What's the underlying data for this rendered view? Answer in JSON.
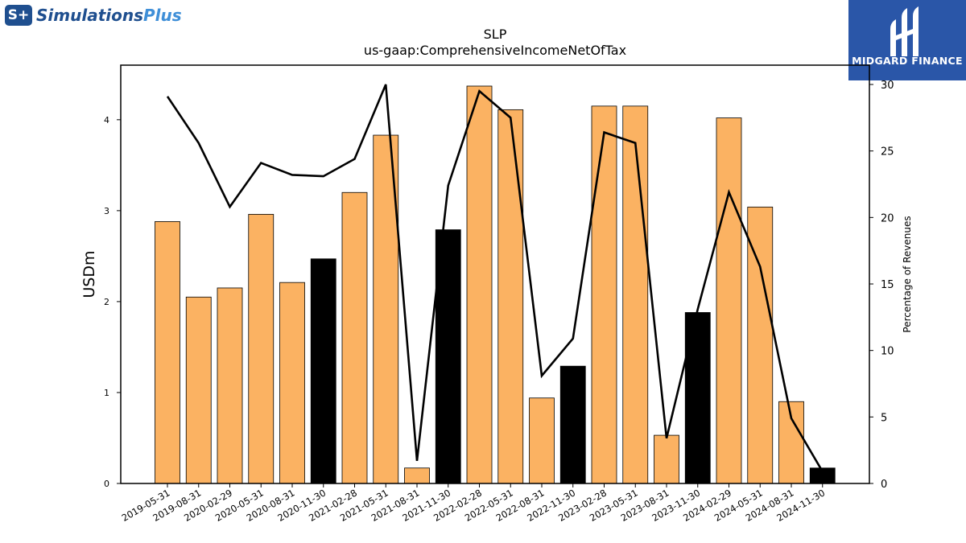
{
  "brand": {
    "left_logo_mark": "S+",
    "left_logo_text_main": "Simulations",
    "left_logo_text_accent": "Plus",
    "right_logo_text": "MIDGARD FINANCE"
  },
  "chart_data": {
    "type": "bar",
    "title": "SLP",
    "subtitle": "us-gaap:ComprehensiveIncomeNetOfTax",
    "ylabel": "USDm",
    "y2label": "Percentage of Revenues",
    "ylim": [
      0,
      4.6
    ],
    "y2lim": [
      0,
      30
    ],
    "yticks": [
      0,
      1,
      2,
      3,
      4
    ],
    "y2ticks": [
      0,
      5,
      10,
      15,
      20,
      25,
      30
    ],
    "categories": [
      "2019-05-31",
      "2019-08-31",
      "2020-02-29",
      "2020-05-31",
      "2020-08-31",
      "2020-11-30",
      "2021-02-28",
      "2021-05-31",
      "2021-08-31",
      "2021-11-30",
      "2022-02-28",
      "2022-05-31",
      "2022-08-31",
      "2022-11-30",
      "2023-02-28",
      "2023-05-31",
      "2023-08-31",
      "2023-11-30",
      "2024-02-29",
      "2024-05-31",
      "2024-08-31",
      "2024-11-30"
    ],
    "values": [
      2.88,
      2.05,
      2.15,
      2.96,
      2.21,
      2.47,
      3.2,
      3.83,
      0.17,
      2.79,
      4.37,
      4.11,
      0.94,
      1.29,
      4.15,
      4.15,
      0.53,
      1.88,
      4.02,
      3.04,
      0.9,
      0.17
    ],
    "highlighted": [
      false,
      false,
      false,
      false,
      false,
      true,
      false,
      false,
      false,
      true,
      false,
      false,
      false,
      true,
      false,
      false,
      false,
      true,
      false,
      false,
      false,
      true
    ],
    "line_values": [
      29.1,
      25.6,
      20.8,
      24.1,
      23.2,
      23.1,
      24.4,
      30.0,
      1.7,
      22.4,
      29.5,
      27.5,
      8.1,
      10.9,
      26.4,
      25.6,
      3.4,
      13.1,
      21.9,
      16.3,
      4.9,
      0.9
    ],
    "colors": {
      "bar": "#fbb262",
      "bar_highlight": "#000000",
      "line": "#000000",
      "left_logo": "#1f4f8f",
      "right_logo_bg": "#2a56a8"
    },
    "grid": false
  }
}
